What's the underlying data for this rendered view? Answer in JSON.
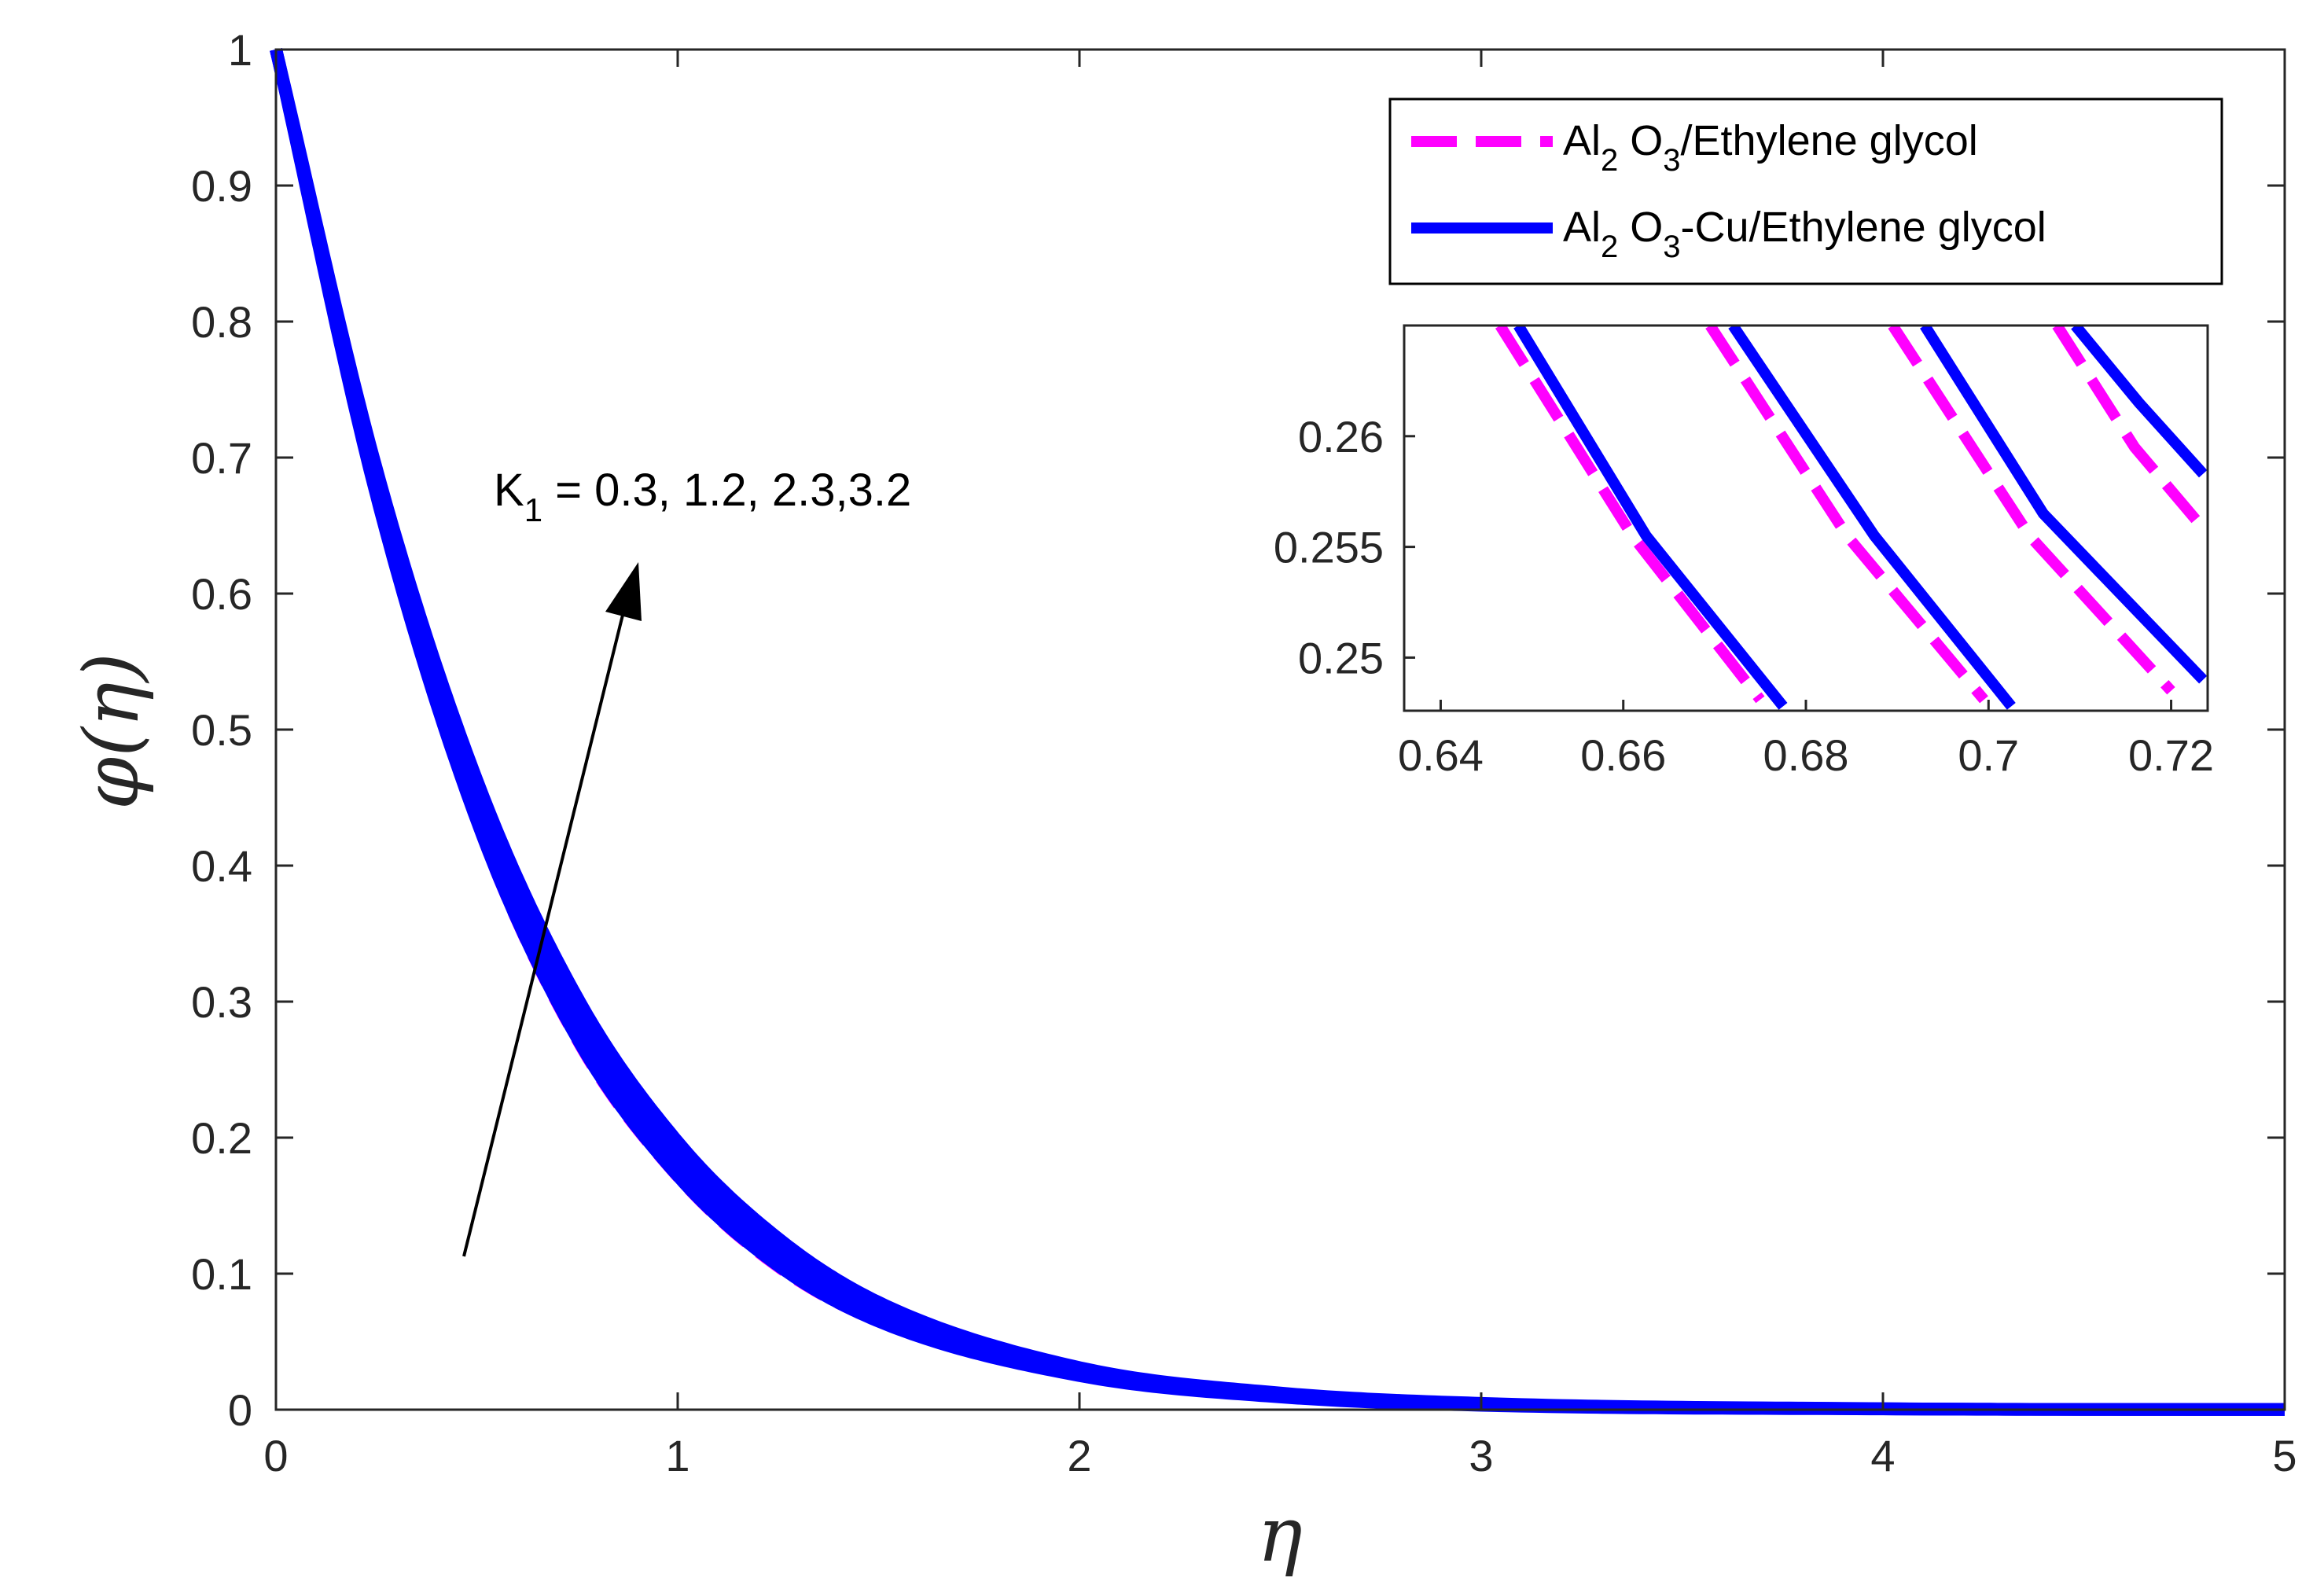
{
  "chart_data": [
    {
      "type": "line",
      "xlabel": "η",
      "ylabel": "φ(η)",
      "xlim": [
        0,
        5
      ],
      "ylim": [
        0,
        1
      ],
      "xticks": [
        "0",
        "1",
        "2",
        "3",
        "4",
        "5"
      ],
      "yticks": [
        "0",
        "0.1",
        "0.2",
        "0.3",
        "0.4",
        "0.5",
        "0.6",
        "0.7",
        "0.8",
        "0.9",
        "1"
      ],
      "grid": false,
      "legend_position": "top-right",
      "colors": {
        "Al2O3_ethylene_glycol": "#ff00ff",
        "Al2O3_Cu_ethylene_glycol": "#0000ff"
      },
      "x": [
        0,
        0.25,
        0.5,
        0.75,
        1.0,
        1.25,
        1.5,
        2.0,
        2.5,
        3.0,
        4.0,
        5.0
      ],
      "series": [
        {
          "name": "Al2 O3/Ethylene glycol",
          "line_style": "dashed",
          "K1": "0.3",
          "values": [
            1,
            0.67,
            0.43,
            0.27,
            0.17,
            0.104,
            0.064,
            0.024,
            0.009,
            0.003,
            0.0005,
            0.0001
          ]
        },
        {
          "name": "Al2 O3/Ethylene glycol",
          "line_style": "dashed",
          "K1": "1.2",
          "values": [
            1,
            0.675,
            0.44,
            0.28,
            0.177,
            0.11,
            0.068,
            0.026,
            0.01,
            0.0035,
            0.0006,
            0.0001
          ]
        },
        {
          "name": "Al2 O3/Ethylene glycol",
          "line_style": "dashed",
          "K1": "2.3",
          "values": [
            1,
            0.683,
            0.452,
            0.29,
            0.186,
            0.117,
            0.073,
            0.028,
            0.011,
            0.004,
            0.0007,
            0.0001
          ]
        },
        {
          "name": "Al2 O3/Ethylene glycol",
          "line_style": "dashed",
          "K1": "3.2",
          "values": [
            1,
            0.69,
            0.46,
            0.3,
            0.195,
            0.124,
            0.078,
            0.03,
            0.012,
            0.0045,
            0.0008,
            0.0001
          ]
        },
        {
          "name": "Al2 O3-Cu/Ethylene glycol",
          "line_style": "solid",
          "K1": "0.3",
          "values": [
            1,
            0.672,
            0.433,
            0.273,
            0.172,
            0.106,
            0.065,
            0.025,
            0.0093,
            0.0032,
            0.0005,
            0.0001
          ]
        },
        {
          "name": "Al2 O3-Cu/Ethylene glycol",
          "line_style": "solid",
          "K1": "1.2",
          "values": [
            1,
            0.677,
            0.443,
            0.283,
            0.179,
            0.112,
            0.069,
            0.027,
            0.0103,
            0.0037,
            0.0006,
            0.0001
          ]
        },
        {
          "name": "Al2 O3-Cu/Ethylene glycol",
          "line_style": "solid",
          "K1": "2.3",
          "values": [
            1,
            0.685,
            0.455,
            0.293,
            0.188,
            0.119,
            0.074,
            0.029,
            0.0113,
            0.0042,
            0.0007,
            0.0001
          ]
        },
        {
          "name": "Al2 O3-Cu/Ethylene glycol",
          "line_style": "solid",
          "K1": "3.2",
          "values": [
            1,
            0.692,
            0.463,
            0.303,
            0.197,
            0.126,
            0.079,
            0.031,
            0.0123,
            0.0047,
            0.0008,
            0.0001
          ]
        }
      ],
      "legend": [
        {
          "prefix": "Al",
          "sub1": "2",
          "mid": " O",
          "sub2": "3",
          "suffix": "/Ethylene glycol"
        },
        {
          "prefix": "Al",
          "sub1": "2",
          "mid": " O",
          "sub2": "3",
          "suffix": "-Cu/Ethylene glycol"
        }
      ],
      "annotation": {
        "prefix": "K",
        "sub": "1",
        "text": " = 0.3, 1.2, 2.3,3.2"
      }
    },
    {
      "type": "line",
      "role": "inset-zoom",
      "xlim": [
        0.636,
        0.724
      ],
      "ylim": [
        0.2476,
        0.265
      ],
      "xticks": [
        0.64,
        0.66,
        0.68,
        0.7,
        0.72
      ],
      "xtick_labels": [
        "0.64",
        "0.66",
        "0.68",
        "0.7",
        "0.72"
      ],
      "yticks": [
        0.25,
        0.255,
        0.26
      ],
      "ytick_labels": [
        "0.25",
        "0.255",
        "0.26"
      ],
      "grid": false,
      "segments": [
        {
          "style": "dashed",
          "points": [
            [
              0.6465,
              0.265
            ],
            [
              0.661,
              0.2555
            ],
            [
              0.675,
              0.2481
            ]
          ]
        },
        {
          "style": "dashed",
          "points": [
            [
              0.6695,
              0.265
            ],
            [
              0.6845,
              0.2555
            ],
            [
              0.6995,
              0.2481
            ]
          ]
        },
        {
          "style": "dashed",
          "points": [
            [
              0.6895,
              0.265
            ],
            [
              0.7045,
              0.2555
            ],
            [
              0.72,
              0.2485
            ]
          ]
        },
        {
          "style": "dashed",
          "points": [
            [
              0.7075,
              0.265
            ],
            [
              0.716,
              0.2595
            ],
            [
              0.724,
              0.2556
            ]
          ]
        },
        {
          "style": "solid",
          "points": [
            [
              0.6485,
              0.265
            ],
            [
              0.6625,
              0.2555
            ],
            [
              0.6775,
              0.2478
            ]
          ]
        },
        {
          "style": "solid",
          "points": [
            [
              0.672,
              0.265
            ],
            [
              0.6875,
              0.2555
            ],
            [
              0.7025,
              0.2478
            ]
          ]
        },
        {
          "style": "solid",
          "points": [
            [
              0.693,
              0.265
            ],
            [
              0.706,
              0.2565
            ],
            [
              0.7235,
              0.249
            ]
          ]
        },
        {
          "style": "solid",
          "points": [
            [
              0.7095,
              0.265
            ],
            [
              0.7165,
              0.2615
            ],
            [
              0.7235,
              0.2583
            ]
          ]
        }
      ]
    }
  ]
}
